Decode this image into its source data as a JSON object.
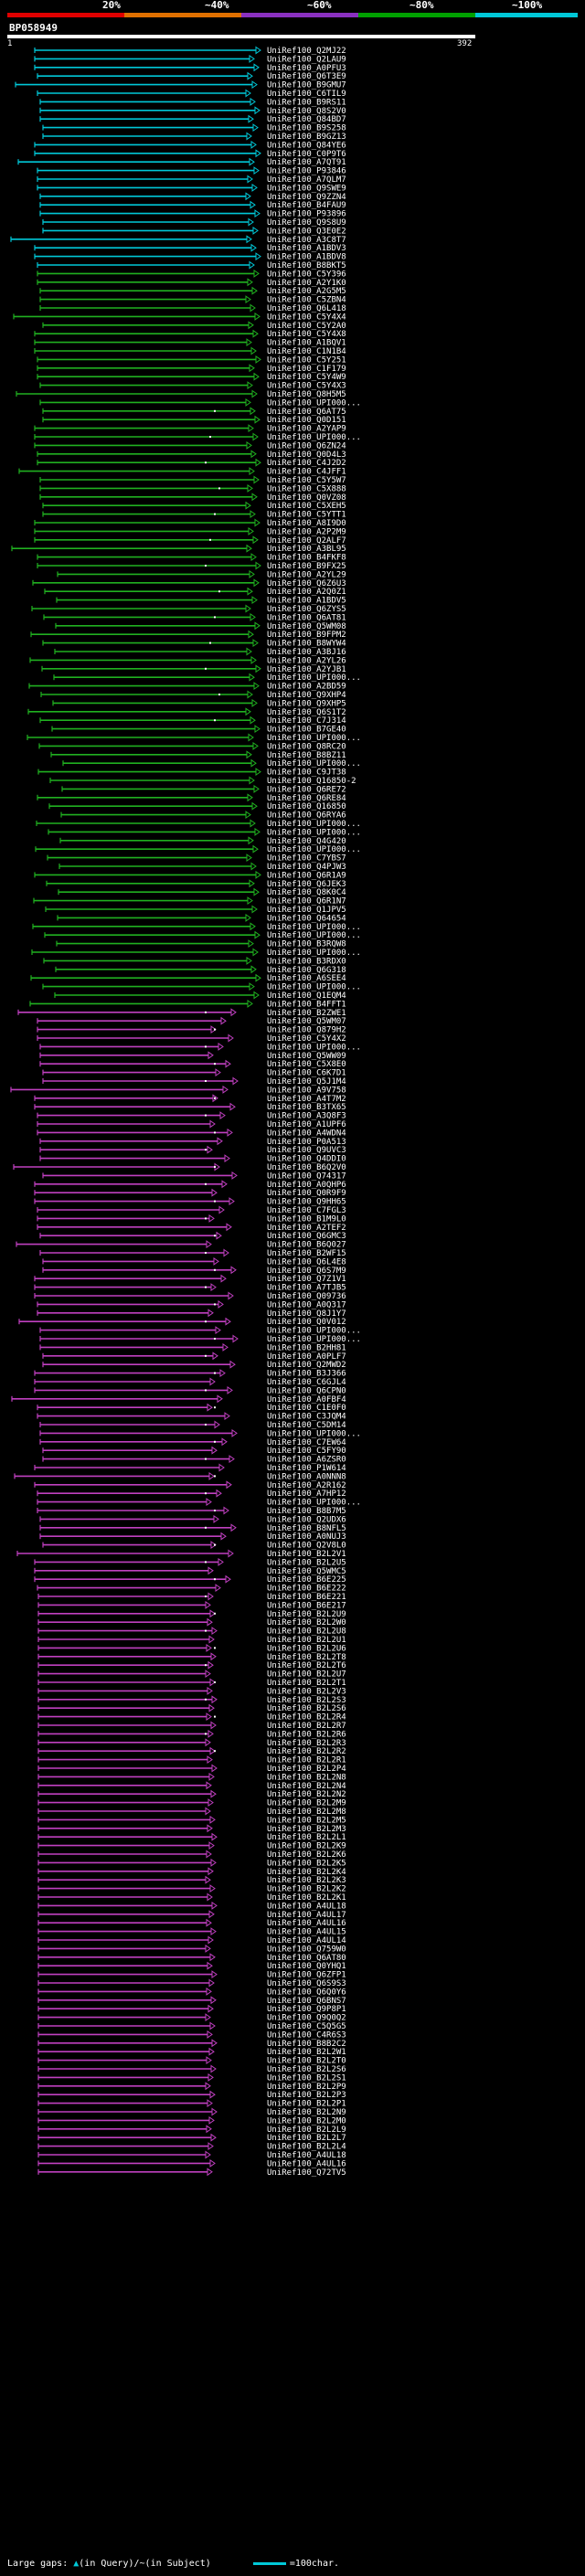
{
  "scale": {
    "labels": [
      "20%",
      "~40%",
      "~60%",
      "~80%",
      "~100%"
    ],
    "colors": [
      "#e00000",
      "#e07000",
      "#8a30c0",
      "#00a000",
      "#00c8d8"
    ]
  },
  "query": {
    "name": "BP058949",
    "start": "1",
    "end": "392"
  },
  "chart_data": {
    "type": "alignment-overview",
    "query_length": 392,
    "hits": [
      "UniRef100_Q2MJ22",
      "UniRef100_Q2LAU9",
      "UniRef100_A0PFU3",
      "UniRef100_Q6T3E9",
      "UniRef100_B9GMU7",
      "UniRef100_C6TIL9",
      "UniRef100_B9RS11",
      "UniRef100_Q8S2V0",
      "UniRef100_Q84BD7",
      "UniRef100_B9S258",
      "UniRef100_B9GZ13",
      "UniRef100_Q84YE6",
      "UniRef100_C0P9T6",
      "UniRef100_A7QT91",
      "UniRef100_P93846",
      "UniRef100_A7QLM7",
      "UniRef100_Q9SWE9",
      "UniRef100_Q9ZZN4",
      "UniRef100_B4FAU9",
      "UniRef100_P93896",
      "UniRef100_Q9S8U9",
      "UniRef100_Q3E0E2",
      "UniRef100_A3C8T7",
      "UniRef100_A1BDV3",
      "UniRef100_A1BDV8",
      "UniRef100_B8BKT5",
      "UniRef100_C5Y396",
      "UniRef100_A2Y1K0",
      "UniRef100_A2G5M5",
      "UniRef100_C5ZBN4",
      "UniRef100_Q6L418",
      "UniRef100_C5Y4X4",
      "UniRef100_C5Y2A0",
      "UniRef100_C5Y4X8",
      "UniRef100_A1BQV1",
      "UniRef100_C1N1B4",
      "UniRef100_C5Y251",
      "UniRef100_C1F179",
      "UniRef100_C5Y4W9",
      "UniRef100_C5Y4X3",
      "UniRef100_Q8H5M5",
      "UniRef100_UPI000...",
      "UniRef100_Q6AT75",
      "UniRef100_Q0D151",
      "UniRef100_A2YAP9",
      "UniRef100_UPI000...",
      "UniRef100_Q6ZN24",
      "UniRef100_Q0D4L3",
      "UniRef100_C4J2D2",
      "UniRef100_C4JFF1",
      "UniRef100_C5Y5W7",
      "UniRef100_C5X888",
      "UniRef100_Q0VZ08",
      "UniRef100_C5XEH5",
      "UniRef100_C5YTT1",
      "UniRef100_A8I9D0",
      "UniRef100_A2P2M9",
      "UniRef100_Q2ALF7",
      "UniRef100_A3BL95",
      "UniRef100_B4FKF8",
      "UniRef100_B9FX25",
      "UniRef100_A2YL29",
      "UniRef100_Q6Z6U3",
      "UniRef100_A2Q0Z1",
      "UniRef100_A1BDV5",
      "UniRef100_Q6ZYS5",
      "UniRef100_Q6AT81",
      "UniRef100_Q5WM08",
      "UniRef100_B9FPM2",
      "UniRef100_B8WYW4",
      "UniRef100_A3BJ16",
      "UniRef100_A2YL26",
      "UniRef100_A2YJB1",
      "UniRef100_UPI000...",
      "UniRef100_A2BD59",
      "UniRef100_Q9XHP4",
      "UniRef100_Q9XHP5",
      "UniRef100_Q6S1T2",
      "UniRef100_C7J314",
      "UniRef100_B7GE40",
      "UniRef100_UPI000...",
      "UniRef100_Q8RC20",
      "UniRef100_B8BZ11",
      "UniRef100_UPI000...",
      "UniRef100_C9JT38",
      "UniRef100_Q16850-2",
      "UniRef100_Q6RE72",
      "UniRef100_Q6RE84",
      "UniRef100_Q16850",
      "UniRef100_Q6RYA6",
      "UniRef100_UPI000...",
      "UniRef100_UPI000...",
      "UniRef100_Q4G420",
      "UniRef100_UPI000...",
      "UniRef100_C7YBS7",
      "UniRef100_Q4PJW3",
      "UniRef100_Q6R1A9",
      "UniRef100_Q6JEK3",
      "UniRef100_Q8K0C4",
      "UniRef100_Q6R1N7",
      "UniRef100_Q1JPV5",
      "UniRef100_Q64654",
      "UniRef100_UPI000...",
      "UniRef100_UPI000...",
      "UniRef100_B3RQW8",
      "UniRef100_UPI000...",
      "UniRef100_B3RDX0",
      "UniRef100_Q6G318",
      "UniRef100_A6SEE4",
      "UniRef100_UPI000...",
      "UniRef100_Q1EQM4",
      "UniRef100_B4FFT1",
      "UniRef100_B2ZWE1",
      "UniRef100_Q5WM07",
      "UniRef100_Q879H2",
      "UniRef100_C5Y4X2",
      "UniRef100_UPI000...",
      "UniRef100_Q5WW09",
      "UniRef100_C5X8E0",
      "UniRef100_C6K7D1",
      "UniRef100_Q5J1M4",
      "UniRef100_A9V758",
      "UniRef100_A4T7M2",
      "UniRef100_B3TX65",
      "UniRef100_A3Q8F3",
      "UniRef100_A1UPF6",
      "UniRef100_A4WDN4",
      "UniRef100_P0A513",
      "UniRef100_Q9UVC3",
      "UniRef100_Q4DDI0",
      "UniRef100_B6Q2V0",
      "UniRef100_Q74317",
      "UniRef100_A0QHP6",
      "UniRef100_Q0R9F9",
      "UniRef100_Q9HH65",
      "UniRef100_C7FGL3",
      "UniRef100_B1M9L0",
      "UniRef100_A2TEF2",
      "UniRef100_Q6GMC3",
      "UniRef100_B6Q027",
      "UniRef100_B2WF15",
      "UniRef100_Q6L4E8",
      "UniRef100_Q6S7M9",
      "UniRef100_Q7Z1V1",
      "UniRef100_A7TJB5",
      "UniRef100_Q09736",
      "UniRef100_A0Q317",
      "UniRef100_Q8J1Y7",
      "UniRef100_Q0V012",
      "UniRef100_UPI000...",
      "UniRef100_UPI000...",
      "UniRef100_B2HH81",
      "UniRef100_A0PLF7",
      "UniRef100_Q2MWD2",
      "UniRef100_B3J366",
      "UniRef100_C6GJL4",
      "UniRef100_Q6CPN0",
      "UniRef100_A0FBF4",
      "UniRef100_C1E0F0",
      "UniRef100_C3JQM4",
      "UniRef100_C5DM14",
      "UniRef100_UPI000...",
      "UniRef100_C7EW64",
      "UniRef100_C5FY90",
      "UniRef100_A6ZSR0",
      "UniRef100_P1W614",
      "UniRef100_A0NNN8",
      "UniRef100_A2R162",
      "UniRef100_A7HP12",
      "UniRef100_UPI000...",
      "UniRef100_B8B7M5",
      "UniRef100_Q2UDX6",
      "UniRef100_B8NFL5",
      "UniRef100_A0NUJ3",
      "UniRef100_Q2V8L0",
      "UniRef100_B2L2V1",
      "UniRef100_B2L2U5",
      "UniRef100_Q5WMC5",
      "UniRef100_B6E225",
      "UniRef100_B6E222",
      "UniRef100_B6E221",
      "UniRef100_B6E217",
      "UniRef100_B2L2U9",
      "UniRef100_B2L2W0",
      "UniRef100_B2L2U8",
      "UniRef100_B2L2U1",
      "UniRef100_B2L2U6",
      "UniRef100_B2L2T8",
      "UniRef100_B2L2T6",
      "UniRef100_B2L2U7",
      "UniRef100_B2L2T1",
      "UniRef100_B2L2V3",
      "UniRef100_B2L2S3",
      "UniRef100_B2L2S6",
      "UniRef100_B2L2R4",
      "UniRef100_B2L2R7",
      "UniRef100_B2L2R6",
      "UniRef100_B2L2R3",
      "UniRef100_B2L2R2",
      "UniRef100_B2L2R1",
      "UniRef100_B2L2P4",
      "UniRef100_B2L2N8",
      "UniRef100_B2L2N4",
      "UniRef100_B2L2N2",
      "UniRef100_B2L2M9",
      "UniRef100_B2L2M8",
      "UniRef100_B2L2M5",
      "UniRef100_B2L2M3",
      "UniRef100_B2L2L1",
      "UniRef100_B2L2K9",
      "UniRef100_B2L2K6",
      "UniRef100_B2L2K5",
      "UniRef100_B2L2K4",
      "UniRef100_B2L2K3",
      "UniRef100_B2L2K2",
      "UniRef100_B2L2K1",
      "UniRef100_A4UL18",
      "UniRef100_A4UL17",
      "UniRef100_A4UL16",
      "UniRef100_A4UL15",
      "UniRef100_A4UL14",
      "UniRef100_Q759W0",
      "UniRef100_Q6AT80",
      "UniRef100_Q0YHQ1",
      "UniRef100_Q6ZFP1",
      "UniRef100_Q6S9S3",
      "UniRef100_Q6Q0Y6",
      "UniRef100_Q6BNS7",
      "UniRef100_Q9P8P1",
      "UniRef100_Q9Q0Q2",
      "UniRef100_C5Q5G5",
      "UniRef100_C4R6S3",
      "UniRef100_B8B2C2",
      "UniRef100_B2L2W1",
      "UniRef100_B2L2T0",
      "UniRef100_B2L2S6",
      "UniRef100_B2L2S1",
      "UniRef100_B2L2P9",
      "UniRef100_B2L2P3",
      "UniRef100_B2L2P1",
      "UniRef100_B2L2N9",
      "UniRef100_B2L2M0",
      "UniRef100_B2L2L9",
      "UniRef100_B2L2L7",
      "UniRef100_B2L2L4",
      "UniRef100_A4UL18",
      "UniRef100_A4UL16",
      "UniRef100_Q72TV5"
    ]
  },
  "footer": {
    "text": "Large gaps: ",
    "mark_q": "▲",
    "q_label": "(in Query)",
    "mark_s": "/~",
    "s_label": "(in Subject)",
    "legend": "=100char."
  }
}
